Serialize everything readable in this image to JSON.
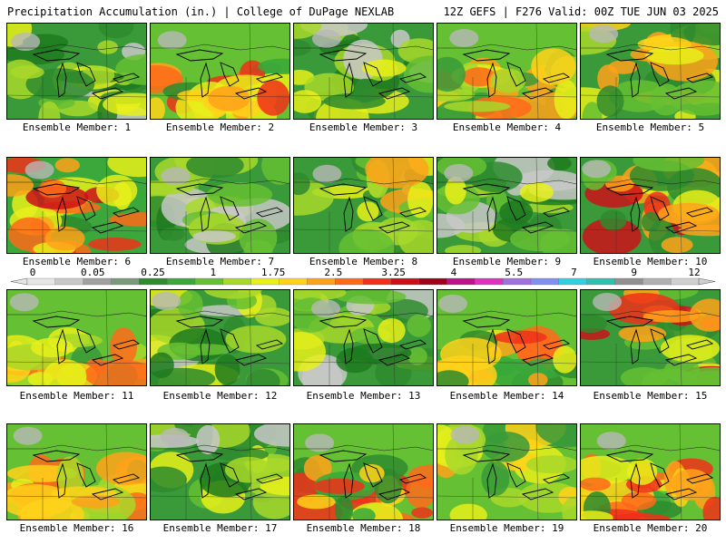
{
  "header": {
    "title_left": "Precipitation Accumulation (in.) | College of DuPage NEXLAB",
    "title_right": "12Z GEFS | F276 Valid: 00Z TUE JUN 03 2025"
  },
  "panels": [
    {
      "label": "Ensemble Member: 1",
      "scheme": "green"
    },
    {
      "label": "Ensemble Member: 2",
      "scheme": "hot_south"
    },
    {
      "label": "Ensemble Member: 3",
      "scheme": "green"
    },
    {
      "label": "Ensemble Member: 4",
      "scheme": "yellow_south"
    },
    {
      "label": "Ensemble Member: 5",
      "scheme": "green_east"
    },
    {
      "label": "Ensemble Member: 6",
      "scheme": "hot_west"
    },
    {
      "label": "Ensemble Member: 7",
      "scheme": "green"
    },
    {
      "label": "Ensemble Member: 8",
      "scheme": "green_east"
    },
    {
      "label": "Ensemble Member: 9",
      "scheme": "green"
    },
    {
      "label": "Ensemble Member: 10",
      "scheme": "hot_east"
    },
    {
      "label": "Ensemble Member: 11",
      "scheme": "yellow_south"
    },
    {
      "label": "Ensemble Member: 12",
      "scheme": "green"
    },
    {
      "label": "Ensemble Member: 13",
      "scheme": "green"
    },
    {
      "label": "Ensemble Member: 14",
      "scheme": "hot_south"
    },
    {
      "label": "Ensemble Member: 15",
      "scheme": "hot_east"
    },
    {
      "label": "Ensemble Member: 16",
      "scheme": "yellow_south"
    },
    {
      "label": "Ensemble Member: 17",
      "scheme": "green"
    },
    {
      "label": "Ensemble Member: 18",
      "scheme": "hot_south"
    },
    {
      "label": "Ensemble Member: 19",
      "scheme": "yellow_north"
    },
    {
      "label": "Ensemble Member: 20",
      "scheme": "hot_south"
    }
  ],
  "colorbar": {
    "tick_labels": [
      "0",
      "0.05",
      "0.25",
      "1",
      "1.75",
      "2.5",
      "3.25",
      "4",
      "5.5",
      "7",
      "9",
      "12"
    ],
    "colors": [
      "#e6e6e6",
      "#c8c8c8",
      "#a0a0a0",
      "#7a9a7a",
      "#2e8b2e",
      "#3aa83a",
      "#66c033",
      "#a8d82a",
      "#e8f01a",
      "#ffd21a",
      "#ffa21a",
      "#ff6a1a",
      "#f0301a",
      "#cc101a",
      "#a0001a",
      "#c0108a",
      "#e030c0",
      "#a070e0",
      "#8090f0",
      "#30d0e0",
      "#30c0b0",
      "#909090",
      "#b0b0b0",
      "#d0d0d0"
    ]
  }
}
